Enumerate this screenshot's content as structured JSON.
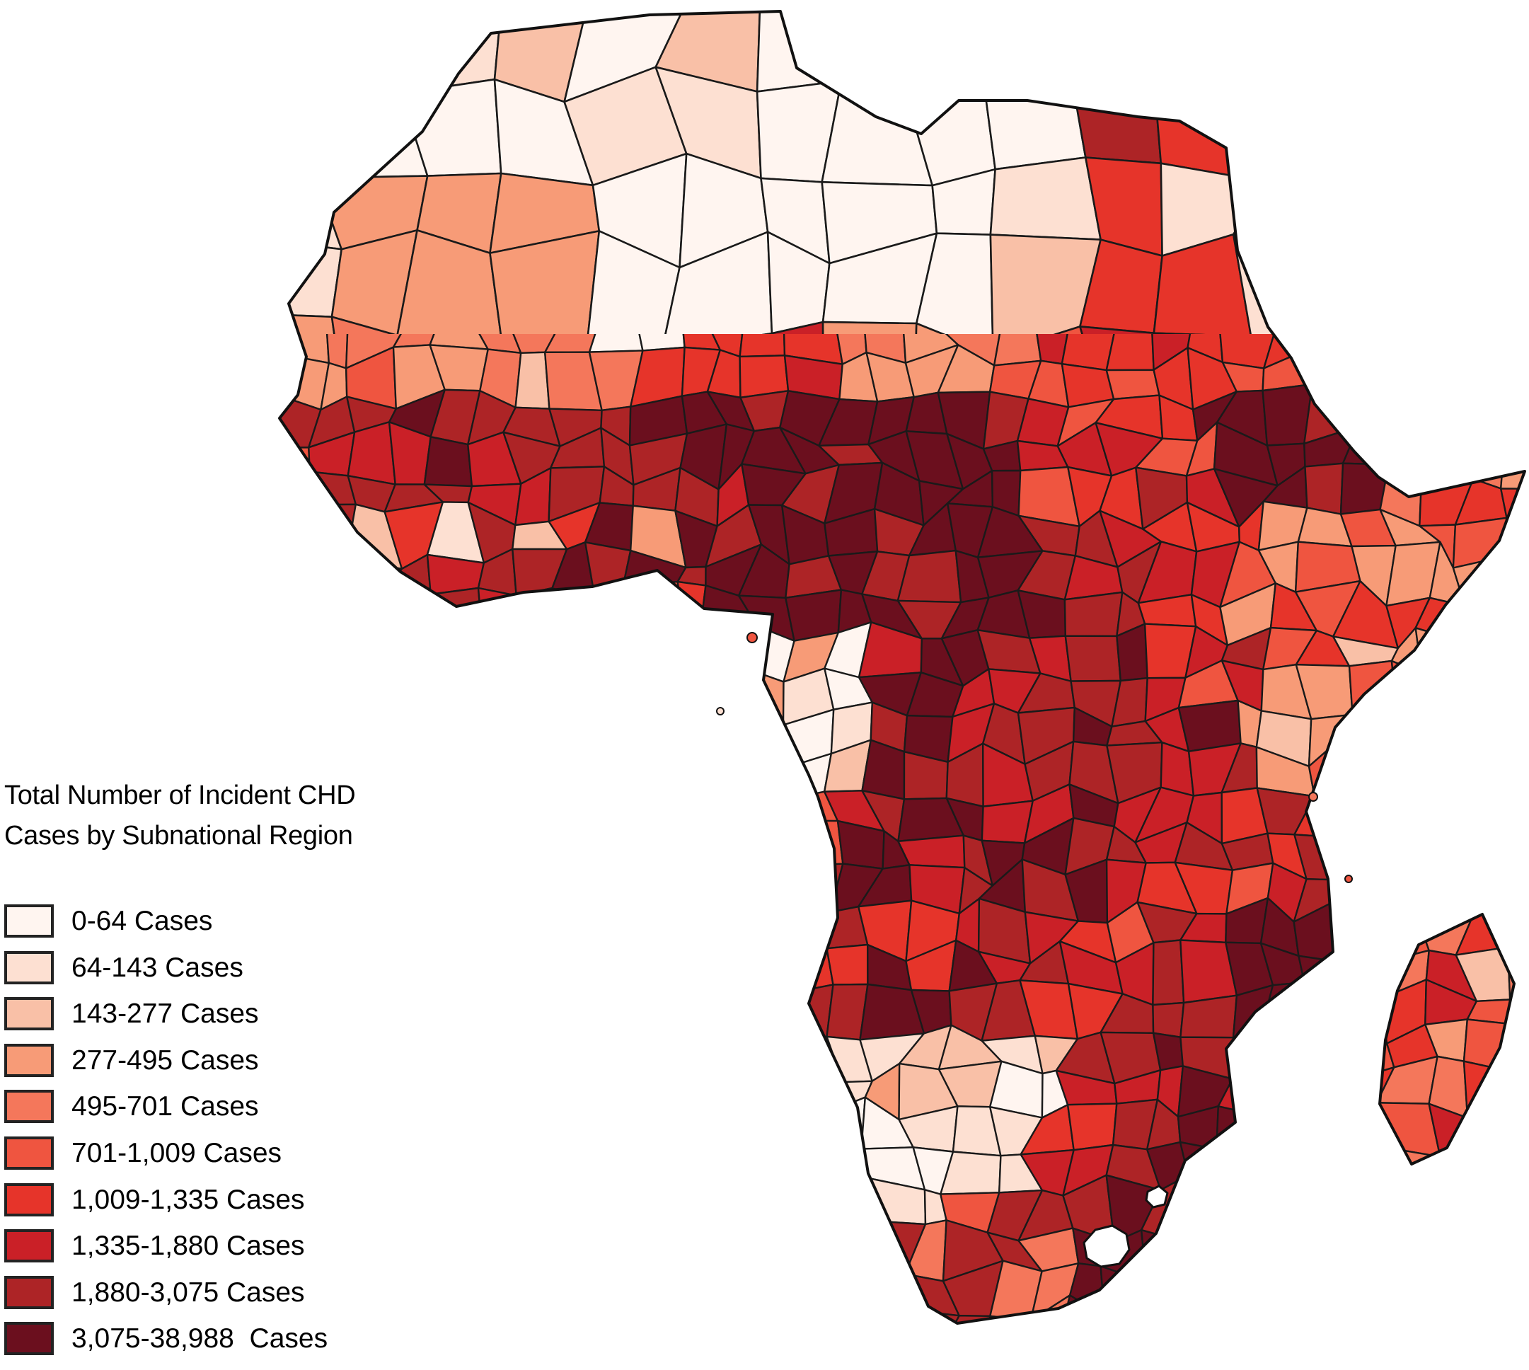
{
  "figure": {
    "title": "Total Number of Incident CHD Cases by Subnational Region",
    "kind": "choropleth map",
    "geography": "Africa with Madagascar, subnational (admin-1) regions"
  },
  "map": {
    "background": "#ffffff",
    "border_color": "#1a1a1a",
    "coastline_color": "#111111"
  },
  "legend": {
    "swatch_border_color": "#232323",
    "items": [
      {
        "label": "0-64 Cases",
        "color": "#fff5f0"
      },
      {
        "label": "64-143 Cases",
        "color": "#fde0d2"
      },
      {
        "label": "143-277 Cases",
        "color": "#f9c0a7"
      },
      {
        "label": "277-495 Cases",
        "color": "#f79b77"
      },
      {
        "label": "495-701 Cases",
        "color": "#f4775b"
      },
      {
        "label": "701-1,009 Cases",
        "color": "#ef5540"
      },
      {
        "label": "1,009-1,335 Cases",
        "color": "#e6342a"
      },
      {
        "label": "1,335-1,880 Cases",
        "color": "#ca2027"
      },
      {
        "label": "1,880-3,075 Cases",
        "color": "#ad2426"
      },
      {
        "label": "3,075-38,988  Cases",
        "color": "#6b0f1e"
      }
    ]
  },
  "chart_data": {
    "type": "choropleth",
    "title": "Total Number of Incident CHD Cases by Subnational Region",
    "legend_position": "bottom-left",
    "bins": [
      {
        "range": [
          0,
          64
        ],
        "color": "#fff5f0"
      },
      {
        "range": [
          64,
          143
        ],
        "color": "#fde0d2"
      },
      {
        "range": [
          143,
          277
        ],
        "color": "#f9c0a7"
      },
      {
        "range": [
          277,
          495
        ],
        "color": "#f79b77"
      },
      {
        "range": [
          495,
          701
        ],
        "color": "#f4775b"
      },
      {
        "range": [
          701,
          1009
        ],
        "color": "#ef5540"
      },
      {
        "range": [
          1009,
          1335
        ],
        "color": "#e6342a"
      },
      {
        "range": [
          1335,
          1880
        ],
        "color": "#ca2027"
      },
      {
        "range": [
          1880,
          3075
        ],
        "color": "#ad2426"
      },
      {
        "range": [
          3075,
          38988
        ],
        "color": "#6b0f1e"
      }
    ],
    "visual_pattern_notes": [
      "Sahara and North Africa mostly lightest bins, pink over Egypt and Mauritania-Mali salmon patch",
      "Nile delta and valley dark red cluster",
      "Morocco Atlas bright red patches",
      "Niger large uniform bright red block",
      "Sahel belt from Senegal through Nigeria, Chad and CAR darkest maroon bins",
      "Ethiopia large darkest maroon block, Somalia mixed salmon",
      "DRC and central Africa dark reds with maroon clusters, Gabon-Congo coast lightest",
      "Angola-Zambia-Tanzania mixed mid reds, Mozambique coast darkest maroon",
      "Namibia-Botswana and western South Africa lightest, eastern South Africa and KwaZulu-Natal darkest",
      "Madagascar mixed salmon to red"
    ]
  }
}
